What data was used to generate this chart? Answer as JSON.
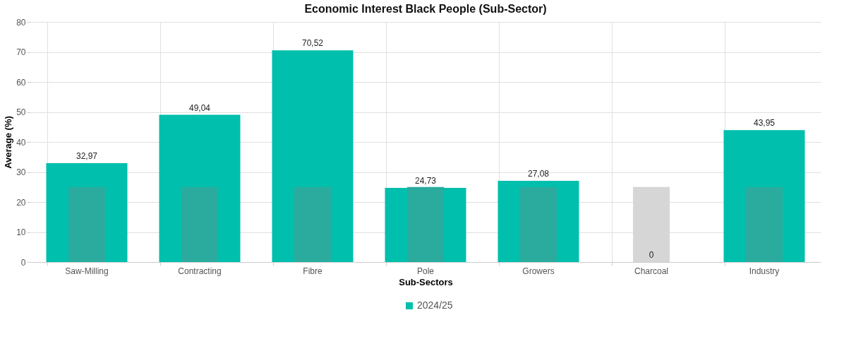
{
  "chart_data": {
    "type": "bar",
    "title": "Economic Interest Black People (Sub-Sector)",
    "xlabel": "Sub-Sectors",
    "ylabel": "Average (%)",
    "categories": [
      "Saw-Milling",
      "Contracting",
      "Fibre",
      "Pole",
      "Growers",
      "Charcoal",
      "Industry"
    ],
    "series": [
      {
        "name": "2024/25",
        "color": "#00bfad",
        "values": [
          32.97,
          49.04,
          70.52,
          24.73,
          27.08,
          0,
          43.95
        ],
        "value_labels": [
          "32,97",
          "49,04",
          "70,52",
          "24,73",
          "27,08",
          "0",
          "43,95"
        ]
      },
      {
        "colors": [
          "#2aab9e",
          "#2aab9e",
          "#2aab9e",
          "#2aab9e",
          "#2aab9e",
          "#d6d6d6",
          "#2aab9e"
        ],
        "values": [
          25,
          25,
          25,
          25,
          25,
          25,
          25
        ]
      }
    ],
    "ylim": [
      0,
      80
    ],
    "yticks": [
      0,
      10,
      20,
      30,
      40,
      50,
      60,
      70,
      80
    ],
    "grid": true,
    "legend": "bottom"
  }
}
